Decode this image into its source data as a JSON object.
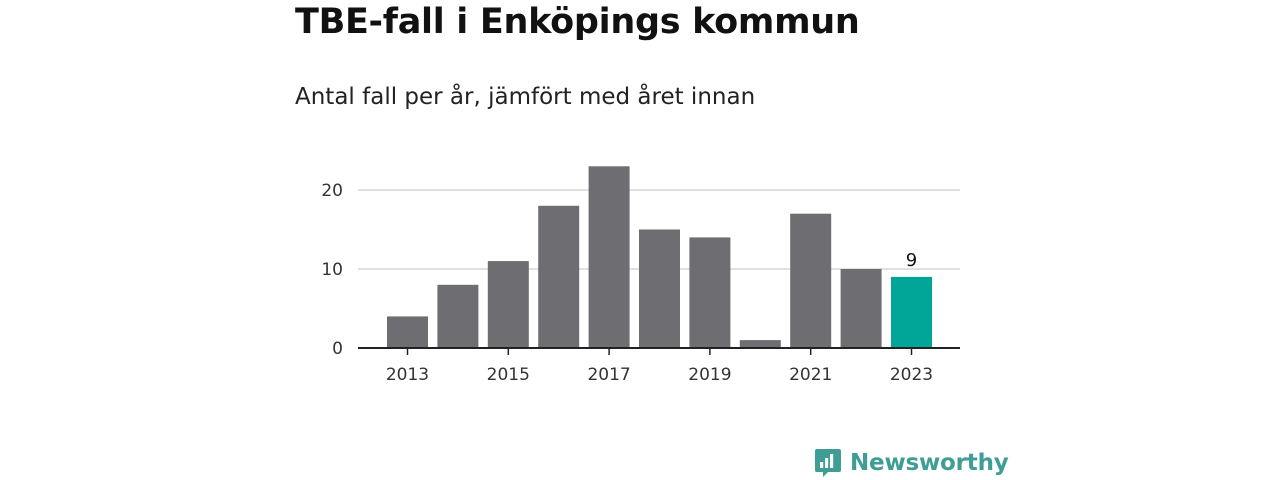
{
  "header": {
    "title": "TBE-fall i Enköpings kommun",
    "subtitle": "Antal fall per år, jämfört med året innan"
  },
  "brand": {
    "name": "Newsworthy",
    "icon": "bar-chart-speech-bubble-icon",
    "color": "#3e9d94"
  },
  "chart_data": {
    "type": "bar",
    "categories": [
      "2013",
      "2014",
      "2015",
      "2016",
      "2017",
      "2018",
      "2019",
      "2020",
      "2021",
      "2022",
      "2023"
    ],
    "values": [
      4,
      8,
      11,
      18,
      23,
      15,
      14,
      1,
      17,
      10,
      9
    ],
    "x_tick_labels": [
      "2013",
      "2015",
      "2017",
      "2019",
      "2021",
      "2023"
    ],
    "y_ticks": [
      0,
      10,
      20
    ],
    "ylim": [
      0,
      23
    ],
    "grid": true,
    "bar_color": "#6e6d72",
    "highlight_color": "#00a597",
    "highlight_index": 10,
    "highlight_label": "9"
  }
}
